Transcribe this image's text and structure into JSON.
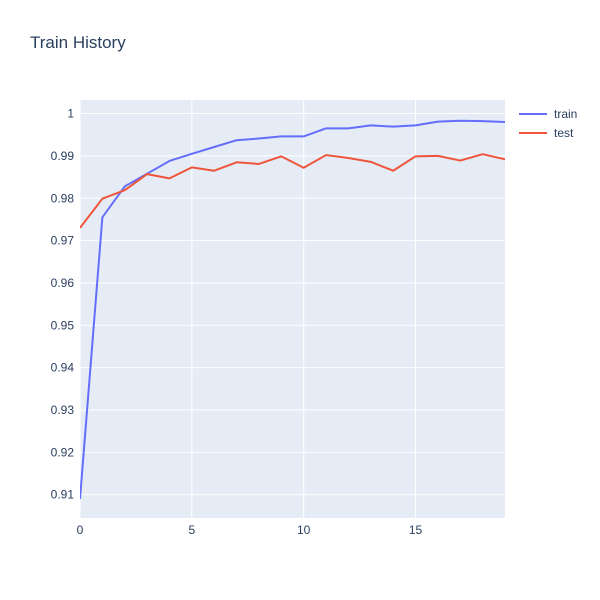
{
  "chart_data": {
    "type": "line",
    "title": "Train History",
    "xlabel": "",
    "ylabel": "",
    "x": [
      0,
      1,
      2,
      3,
      4,
      5,
      6,
      7,
      8,
      9,
      10,
      11,
      12,
      13,
      14,
      15,
      16,
      17,
      18,
      19
    ],
    "xlim": [
      0,
      19
    ],
    "ylim": [
      0.9045,
      1.0032
    ],
    "x_ticks": [
      0,
      5,
      10,
      15
    ],
    "y_ticks": [
      0.91,
      0.92,
      0.93,
      0.94,
      0.95,
      0.96,
      0.97,
      0.98,
      0.99,
      1
    ],
    "y_tick_labels": [
      "0.91",
      "0.92",
      "0.93",
      "0.94",
      "0.95",
      "0.96",
      "0.97",
      "0.98",
      "0.99",
      "1"
    ],
    "x_tick_labels": [
      "0",
      "5",
      "10",
      "15"
    ],
    "grid": true,
    "legend_position": "top-right",
    "series": [
      {
        "name": "train",
        "color": "#636efa",
        "values": [
          0.909,
          0.9755,
          0.9828,
          0.9858,
          0.9888,
          0.9905,
          0.9921,
          0.9937,
          0.9941,
          0.9946,
          0.9946,
          0.9965,
          0.9965,
          0.9972,
          0.9969,
          0.9972,
          0.9981,
          0.9983,
          0.9982,
          0.998
        ]
      },
      {
        "name": "test",
        "color": "#ef553b",
        "values": [
          0.973,
          0.9799,
          0.9819,
          0.9857,
          0.9847,
          0.9873,
          0.9865,
          0.9885,
          0.9881,
          0.9899,
          0.9872,
          0.9902,
          0.9895,
          0.9886,
          0.9865,
          0.9899,
          0.99,
          0.9889,
          0.9904,
          0.9892
        ]
      }
    ]
  }
}
